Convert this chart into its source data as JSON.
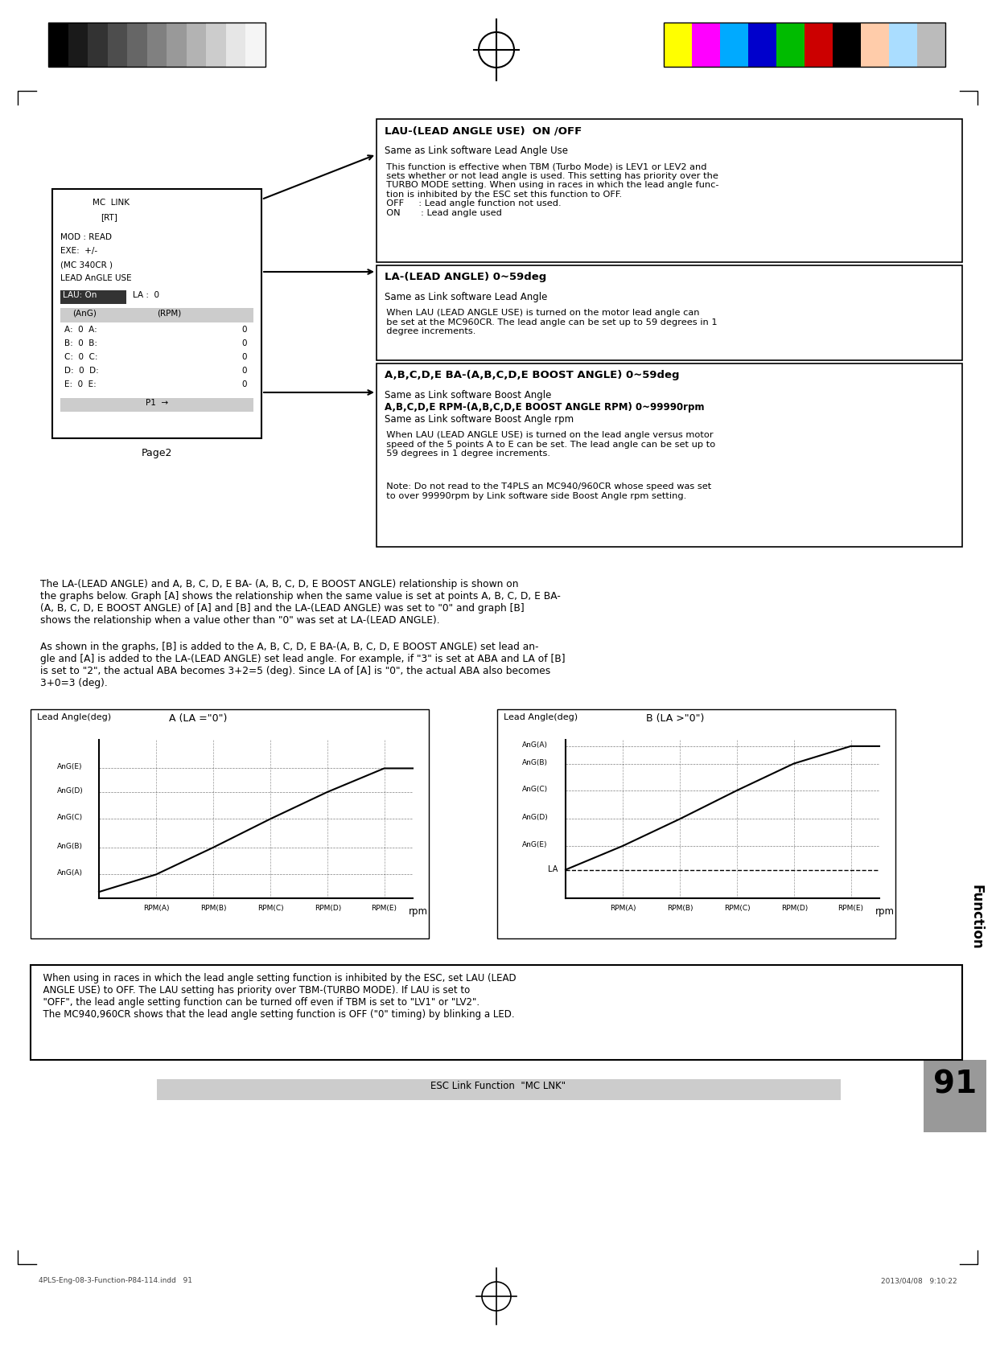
{
  "page_number": "91",
  "footer_left": "4PLS-Eng-08-3-Function-P84-114.indd   91",
  "footer_right": "2013/04/08   9:10:22",
  "footer_center": "ESC Link Function  \"MC LNK\"",
  "section_label": "Function",
  "top_grayscale_colors": [
    "#000000",
    "#1a1a1a",
    "#333333",
    "#4d4d4d",
    "#666666",
    "#808080",
    "#999999",
    "#b3b3b3",
    "#cccccc",
    "#e6e6e6",
    "#f5f5f5"
  ],
  "top_color_colors": [
    "#ffff00",
    "#ff00ff",
    "#00aaff",
    "#0000cc",
    "#00bb00",
    "#cc0000",
    "#000000",
    "#ffccaa",
    "#aaddff",
    "#bbbbbb"
  ],
  "box1_title": "LAU-(LEAD ANGLE USE)  ON /OFF",
  "box1_subtitle": "Same as Link software Lead Angle Use",
  "box2_title": "LA-(LEAD ANGLE) 0~59deg",
  "box2_subtitle": "Same as Link software Lead Angle",
  "box3_title": "A,B,C,D,E BA-(A,B,C,D,E BOOST ANGLE) 0~59deg",
  "box3_subtitle": "Same as Link software Boost Angle",
  "box3_subtitle2": "A,B,C,D,E RPM-(A,B,C,D,E BOOST ANGLE RPM) 0~99990rpm",
  "box3_subtitle3": "Same as Link software Boost Angle rpm",
  "bg_color": "#ffffff",
  "rpm_ticks": [
    "RPM(A)",
    "RPM(B)",
    "RPM(C)",
    "RPM(D)",
    "RPM(E)"
  ],
  "ang_ticks_A": [
    "AnG(A)",
    "AnG(B)",
    "AnG(C)",
    "AnG(D)",
    "AnG(E)"
  ],
  "ang_ticks_B": [
    "AnG(A)",
    "AnG(B)",
    "AnG(C)",
    "AnG(D)",
    "AnG(E)"
  ]
}
